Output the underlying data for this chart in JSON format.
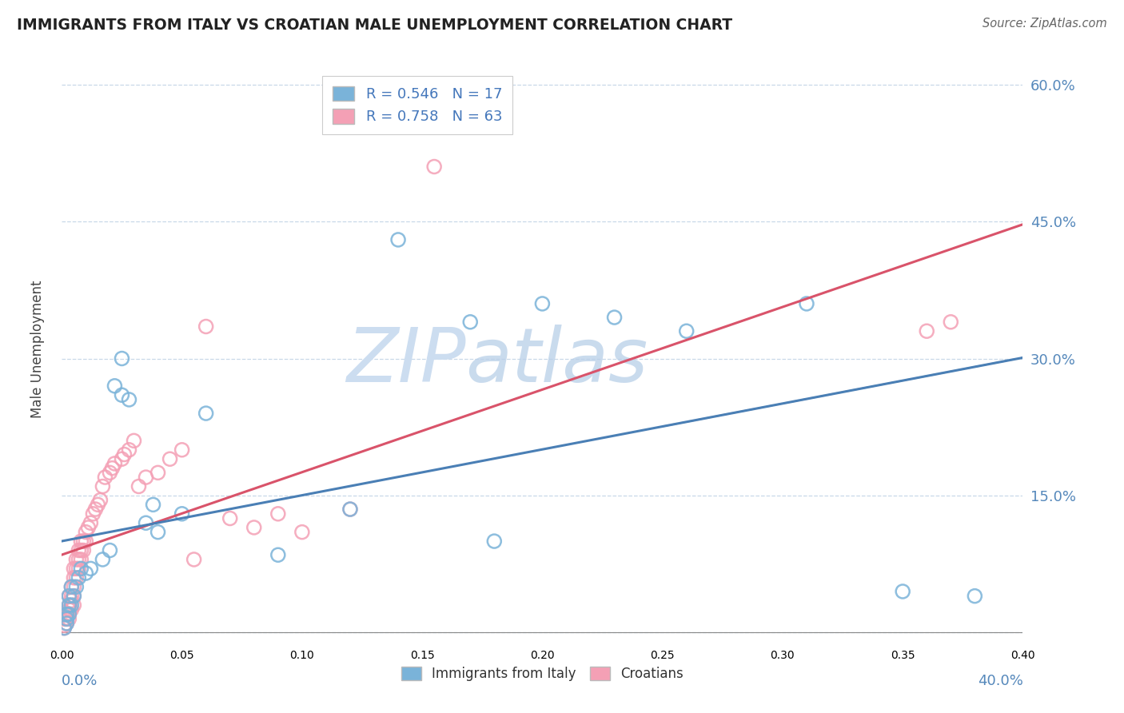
{
  "title": "IMMIGRANTS FROM ITALY VS CROATIAN MALE UNEMPLOYMENT CORRELATION CHART",
  "source": "Source: ZipAtlas.com",
  "ylabel": "Male Unemployment",
  "yticks": [
    0.0,
    0.15,
    0.3,
    0.45,
    0.6
  ],
  "ytick_labels": [
    "",
    "15.0%",
    "30.0%",
    "45.0%",
    "60.0%"
  ],
  "xlim": [
    0.0,
    0.4
  ],
  "ylim": [
    -0.01,
    0.63
  ],
  "legend_label1": "Immigrants from Italy",
  "legend_label2": "Croatians",
  "color_blue": "#7ab3d9",
  "color_pink": "#f4a0b5",
  "trendline_blue_color": "#4a7fb5",
  "trendline_pink_color": "#d9536a",
  "background_color": "#ffffff",
  "watermark_color": "#ccddf0",
  "blue_x": [
    0.001,
    0.002,
    0.002,
    0.002,
    0.003,
    0.003,
    0.003,
    0.004,
    0.004,
    0.005,
    0.006,
    0.007,
    0.008,
    0.01,
    0.012,
    0.017,
    0.02,
    0.022,
    0.025,
    0.028,
    0.035,
    0.038,
    0.04,
    0.05,
    0.06,
    0.09,
    0.12,
    0.18,
    0.23,
    0.26,
    0.17,
    0.2,
    0.31,
    0.025,
    0.14,
    0.35,
    0.38
  ],
  "blue_y": [
    0.005,
    0.01,
    0.015,
    0.02,
    0.02,
    0.03,
    0.04,
    0.03,
    0.05,
    0.04,
    0.05,
    0.06,
    0.07,
    0.065,
    0.07,
    0.08,
    0.09,
    0.27,
    0.26,
    0.255,
    0.12,
    0.14,
    0.11,
    0.13,
    0.24,
    0.085,
    0.135,
    0.1,
    0.345,
    0.33,
    0.34,
    0.36,
    0.36,
    0.3,
    0.43,
    0.045,
    0.04
  ],
  "pink_x": [
    0.001,
    0.001,
    0.001,
    0.002,
    0.002,
    0.002,
    0.003,
    0.003,
    0.003,
    0.003,
    0.003,
    0.004,
    0.004,
    0.004,
    0.004,
    0.005,
    0.005,
    0.005,
    0.005,
    0.005,
    0.006,
    0.006,
    0.006,
    0.007,
    0.007,
    0.007,
    0.008,
    0.008,
    0.008,
    0.009,
    0.009,
    0.01,
    0.01,
    0.011,
    0.012,
    0.013,
    0.014,
    0.015,
    0.016,
    0.017,
    0.018,
    0.02,
    0.021,
    0.022,
    0.025,
    0.026,
    0.028,
    0.03,
    0.032,
    0.035,
    0.04,
    0.045,
    0.05,
    0.055,
    0.06,
    0.07,
    0.08,
    0.09,
    0.1,
    0.12,
    0.155,
    0.36,
    0.37
  ],
  "pink_y": [
    0.005,
    0.008,
    0.015,
    0.01,
    0.015,
    0.02,
    0.015,
    0.02,
    0.025,
    0.03,
    0.04,
    0.025,
    0.035,
    0.04,
    0.05,
    0.03,
    0.04,
    0.05,
    0.06,
    0.07,
    0.06,
    0.07,
    0.08,
    0.07,
    0.08,
    0.09,
    0.08,
    0.09,
    0.1,
    0.09,
    0.1,
    0.1,
    0.11,
    0.115,
    0.12,
    0.13,
    0.135,
    0.14,
    0.145,
    0.16,
    0.17,
    0.175,
    0.18,
    0.185,
    0.19,
    0.195,
    0.2,
    0.21,
    0.16,
    0.17,
    0.175,
    0.19,
    0.2,
    0.08,
    0.335,
    0.125,
    0.115,
    0.13,
    0.11,
    0.135,
    0.51,
    0.33,
    0.34
  ]
}
